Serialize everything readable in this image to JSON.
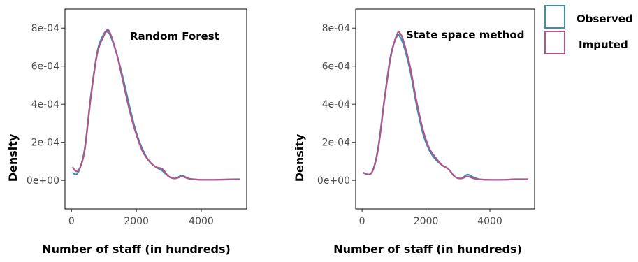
{
  "chart_data": [
    {
      "type": "line",
      "title": "Random Forest",
      "xlabel": "Number of staff (in hundreds)",
      "ylabel": "Density",
      "xlim": [
        -200,
        5400
      ],
      "ylim": [
        -0.00015,
        0.0009
      ],
      "x_ticks": [
        0,
        2000,
        4000
      ],
      "y_ticks": [
        0,
        0.0002,
        0.0004,
        0.0006,
        0.0008
      ],
      "x_tick_labels": [
        "0",
        "2000",
        "4000"
      ],
      "y_tick_labels": [
        "0e+00",
        "2e-04",
        "4e-04",
        "6e-04",
        "8e-04"
      ],
      "grid": false,
      "series": [
        {
          "name": "Observed",
          "color": "#3a8fb7",
          "x": [
            30,
            200,
            400,
            600,
            800,
            1000,
            1100,
            1200,
            1400,
            1600,
            1800,
            2000,
            2200,
            2400,
            2600,
            2800,
            3000,
            3200,
            3400,
            3600,
            3800,
            4000,
            4400,
            4800,
            5200
          ],
          "y": [
            4e-05,
            4e-05,
            0.00016,
            0.00045,
            0.00068,
            0.00077,
            0.00078,
            0.00076,
            0.00066,
            0.00053,
            0.00038,
            0.00025,
            0.00016,
            0.0001,
            7e-05,
            5e-05,
            2e-05,
            1e-05,
            2.5e-05,
            1e-05,
            5e-06,
            3e-06,
            3e-06,
            4e-06,
            5e-06
          ]
        },
        {
          "name": "Imputed",
          "color": "#b0568a",
          "x": [
            30,
            200,
            400,
            600,
            800,
            1000,
            1100,
            1200,
            1400,
            1600,
            1800,
            2000,
            2200,
            2400,
            2600,
            2800,
            3000,
            3200,
            3400,
            3600,
            3800,
            4000,
            4400,
            4800,
            5200
          ],
          "y": [
            7e-05,
            5e-05,
            0.00015,
            0.00044,
            0.00067,
            0.00076,
            0.00079,
            0.00077,
            0.00066,
            0.00051,
            0.00036,
            0.00024,
            0.00015,
            0.0001,
            7e-05,
            6e-05,
            2e-05,
            1e-05,
            2e-05,
            1e-05,
            5e-06,
            3e-06,
            3e-06,
            5e-06,
            6e-06
          ]
        }
      ]
    },
    {
      "type": "line",
      "title": "State space method",
      "xlabel": "Number of staff (in hundreds)",
      "ylabel": "Density",
      "xlim": [
        -200,
        5400
      ],
      "ylim": [
        -0.00015,
        0.0009
      ],
      "x_ticks": [
        0,
        2000,
        4000
      ],
      "y_ticks": [
        0,
        0.0002,
        0.0004,
        0.0006,
        0.0008
      ],
      "x_tick_labels": [
        "0",
        "2000",
        "4000"
      ],
      "y_tick_labels": [
        "0e+00",
        "2e-04",
        "4e-04",
        "6e-04",
        "8e-04"
      ],
      "grid": false,
      "series": [
        {
          "name": "Observed",
          "color": "#3a8fb7",
          "x": [
            30,
            300,
            500,
            700,
            900,
            1100,
            1200,
            1300,
            1500,
            1700,
            1900,
            2100,
            2300,
            2500,
            2700,
            2900,
            3100,
            3300,
            3500,
            3700,
            4000,
            4400,
            4800,
            5200
          ],
          "y": [
            4e-05,
            4e-05,
            0.00017,
            0.00043,
            0.00066,
            0.00076,
            0.00075,
            0.00071,
            0.00058,
            0.0004,
            0.00025,
            0.00016,
            0.00011,
            8e-05,
            6e-05,
            2e-05,
            1e-05,
            3e-05,
            1.5e-05,
            5e-06,
            3e-06,
            3e-06,
            5e-06,
            5e-06
          ]
        },
        {
          "name": "Imputed",
          "color": "#b0568a",
          "x": [
            30,
            300,
            500,
            700,
            900,
            1100,
            1200,
            1300,
            1500,
            1700,
            1900,
            2100,
            2300,
            2500,
            2700,
            2900,
            3100,
            3300,
            3500,
            3700,
            4000,
            4400,
            4800,
            5200
          ],
          "y": [
            4e-05,
            4e-05,
            0.00016,
            0.00042,
            0.00065,
            0.00077,
            0.00077,
            0.00073,
            0.0006,
            0.00042,
            0.00027,
            0.00017,
            0.00012,
            8e-05,
            6e-05,
            2e-05,
            1e-05,
            2e-05,
            1e-05,
            5e-06,
            3e-06,
            3e-06,
            6e-06,
            6e-06
          ]
        }
      ]
    }
  ],
  "legend": {
    "placement": "top-right",
    "items": [
      {
        "label": "Observed",
        "color": "#3a8fb7"
      },
      {
        "label": "Imputed",
        "color": "#b0568a"
      }
    ]
  }
}
